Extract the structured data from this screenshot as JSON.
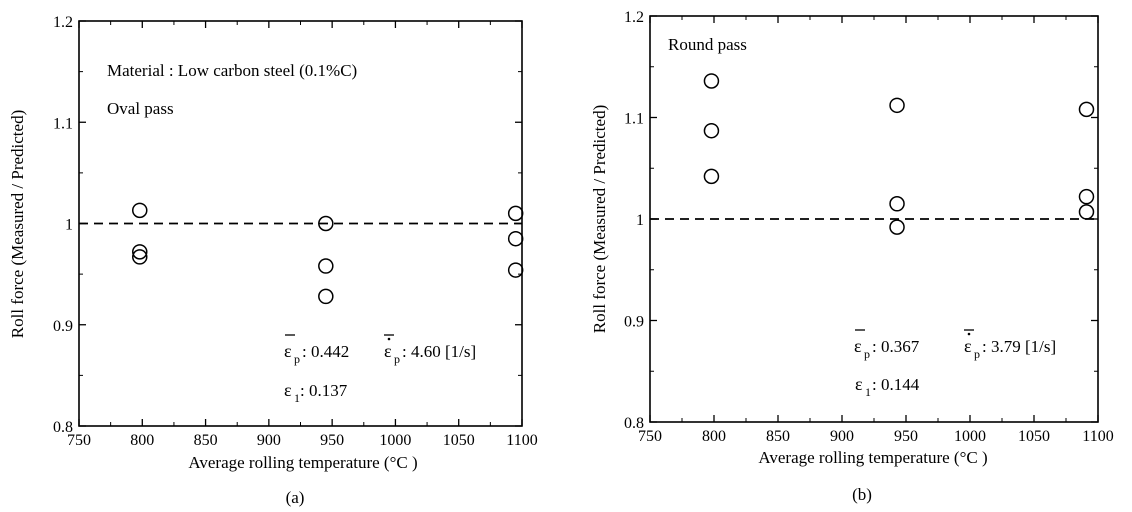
{
  "chart_data": [
    {
      "type": "scatter",
      "panel": "(a)",
      "xlabel": "Average rolling temperature (°C )",
      "ylabel": "Roll force (Measured / Predicted)",
      "xlim": [
        750,
        1100
      ],
      "ylim": [
        0.8,
        1.2
      ],
      "xticks": [
        "750",
        "800",
        "850",
        "900",
        "950",
        "1000",
        "1050",
        "1100"
      ],
      "yticks": [
        "0.8",
        "0.9",
        "1",
        "1.1",
        "1.2"
      ],
      "reference_line": {
        "y": 1.0,
        "style": "dashed"
      },
      "annotations": [
        "Material : Low carbon steel (0.1%C)",
        "Oval pass"
      ],
      "params": {
        "eps_p_label": "ε",
        "eps_p_sub": "p",
        "eps_p_value": ": 0.442",
        "rate_label": "ε",
        "rate_sub": "p",
        "rate_value": ": 4.60 [1/s]",
        "eps1_label": "ε",
        "eps1_sub": "1",
        "eps1_value": ": 0.137"
      },
      "marker": "open-circle",
      "points": [
        {
          "x": 798,
          "y": 1.013
        },
        {
          "x": 798,
          "y": 0.972
        },
        {
          "x": 798,
          "y": 0.967
        },
        {
          "x": 945,
          "y": 1.0
        },
        {
          "x": 945,
          "y": 0.958
        },
        {
          "x": 945,
          "y": 0.928
        },
        {
          "x": 1095,
          "y": 1.01
        },
        {
          "x": 1095,
          "y": 0.985
        },
        {
          "x": 1095,
          "y": 0.954
        }
      ]
    },
    {
      "type": "scatter",
      "panel": "(b)",
      "xlabel": "Average rolling temperature (°C )",
      "ylabel": "Roll force (Measured / Predicted)",
      "xlim": [
        750,
        1100
      ],
      "ylim": [
        0.8,
        1.2
      ],
      "xticks": [
        "750",
        "800",
        "850",
        "900",
        "950",
        "1000",
        "1050",
        "1100"
      ],
      "yticks": [
        "0.8",
        "0.9",
        "1",
        "1.1",
        "1.2"
      ],
      "reference_line": {
        "y": 1.0,
        "style": "dashed"
      },
      "annotations": [
        "Round pass"
      ],
      "params": {
        "eps_p_label": "ε",
        "eps_p_sub": "p",
        "eps_p_value": ": 0.367",
        "rate_label": "ε",
        "rate_sub": "p",
        "rate_value": ": 3.79 [1/s]",
        "eps1_label": "ε",
        "eps1_sub": "1",
        "eps1_value": ": 0.144"
      },
      "marker": "open-circle",
      "points": [
        {
          "x": 798,
          "y": 1.136
        },
        {
          "x": 798,
          "y": 1.087
        },
        {
          "x": 798,
          "y": 1.042
        },
        {
          "x": 943,
          "y": 1.112
        },
        {
          "x": 943,
          "y": 1.015
        },
        {
          "x": 943,
          "y": 0.992
        },
        {
          "x": 1091,
          "y": 1.108
        },
        {
          "x": 1091,
          "y": 1.022
        },
        {
          "x": 1091,
          "y": 1.007
        }
      ]
    }
  ]
}
